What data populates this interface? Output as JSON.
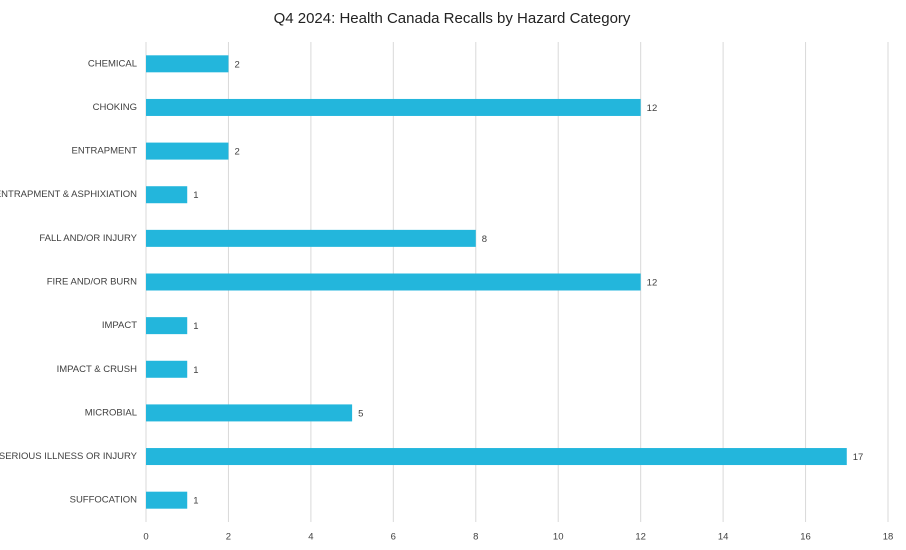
{
  "chart_data": {
    "type": "bar",
    "orientation": "horizontal",
    "title": "Q4 2024: Health Canada Recalls by Hazard Category",
    "categories": [
      "CHEMICAL",
      "CHOKING",
      "ENTRAPMENT",
      "ENTRAPMENT & ASPHIXIATION",
      "FALL AND/OR INJURY",
      "FIRE AND/OR BURN",
      "IMPACT",
      "IMPACT & CRUSH",
      "MICROBIAL",
      "SERIOUS ILLNESS OR INJURY",
      "SUFFOCATION"
    ],
    "values": [
      2,
      12,
      2,
      1,
      8,
      12,
      1,
      1,
      5,
      17,
      1
    ],
    "color": "#23b6dc",
    "xlim": [
      0,
      18
    ],
    "xticks": [
      0,
      2,
      4,
      6,
      8,
      10,
      12,
      14,
      16,
      18
    ],
    "grid": true
  }
}
